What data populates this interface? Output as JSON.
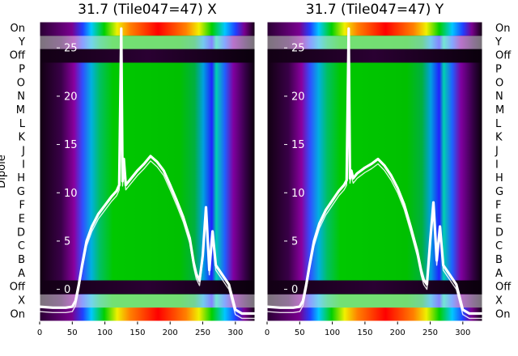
{
  "chart_data": [
    {
      "type": "heatmap",
      "title": "31.7 (Tile047=47) X",
      "ylabel": "Dipole",
      "xlim": [
        0,
        330
      ],
      "xticks": [
        0,
        50,
        100,
        150,
        200,
        250,
        300
      ],
      "y_categories": [
        "On",
        "Y",
        "Off",
        "P",
        "O",
        "N",
        "M",
        "L",
        "K",
        "J",
        "I",
        "H",
        "G",
        "F",
        "E",
        "D",
        "C",
        "B",
        "A",
        "Off",
        "X",
        "On"
      ],
      "overlay_ticks": [
        25,
        20,
        15,
        10,
        5,
        0
      ],
      "overlay_ylim": [
        -3.3,
        27.7
      ],
      "overlay_line": {
        "x": [
          0,
          20,
          40,
          50,
          55,
          60,
          65,
          72,
          80,
          90,
          100,
          110,
          118,
          122,
          125,
          127,
          129,
          132,
          138,
          150,
          160,
          170,
          180,
          190,
          200,
          210,
          220,
          230,
          236,
          240,
          245,
          250,
          255,
          260,
          265,
          270,
          280,
          290,
          300,
          310,
          330
        ],
        "y": [
          -1.8,
          -1.9,
          -1.9,
          -1.8,
          -1.2,
          0.5,
          2.5,
          5.0,
          6.5,
          7.8,
          8.7,
          9.6,
          10.2,
          10.8,
          27,
          11.2,
          13.5,
          10.8,
          11.3,
          12.3,
          13.0,
          13.8,
          13.2,
          12.3,
          10.8,
          9.2,
          7.5,
          5.3,
          2.8,
          1.6,
          0.9,
          3.5,
          8.5,
          2.0,
          6.0,
          2.5,
          1.5,
          0.5,
          -2.1,
          -2.5,
          -2.5
        ]
      }
    },
    {
      "type": "heatmap",
      "title": "31.7 (Tile047=47) Y",
      "xlim": [
        0,
        330
      ],
      "xticks": [
        0,
        50,
        100,
        150,
        200,
        250,
        300
      ],
      "y_categories": [
        "On",
        "Y",
        "Off",
        "P",
        "O",
        "N",
        "M",
        "L",
        "K",
        "J",
        "I",
        "H",
        "G",
        "F",
        "E",
        "D",
        "C",
        "B",
        "A",
        "Off",
        "X",
        "On"
      ],
      "overlay_ticks": [
        25,
        20,
        15,
        10,
        5,
        0
      ],
      "overlay_ylim": [
        -3.3,
        27.7
      ],
      "overlay_line": {
        "x": [
          0,
          20,
          40,
          50,
          55,
          60,
          65,
          72,
          80,
          90,
          100,
          110,
          118,
          122,
          125,
          127,
          129,
          132,
          138,
          150,
          160,
          170,
          180,
          190,
          200,
          210,
          220,
          230,
          236,
          240,
          245,
          250,
          255,
          260,
          265,
          270,
          280,
          290,
          300,
          310,
          330
        ],
        "y": [
          -1.8,
          -1.9,
          -1.9,
          -1.8,
          -1.2,
          0.5,
          2.5,
          5.0,
          6.8,
          8.2,
          9.2,
          10.2,
          10.8,
          11.3,
          27,
          11.5,
          12.3,
          11.5,
          12.0,
          12.6,
          13.0,
          13.5,
          12.8,
          11.8,
          10.5,
          8.8,
          6.5,
          4.0,
          2.0,
          1.0,
          0.5,
          5.0,
          9.0,
          3.0,
          6.5,
          2.5,
          1.5,
          0.5,
          -2.1,
          -2.5,
          -2.5
        ]
      }
    }
  ]
}
